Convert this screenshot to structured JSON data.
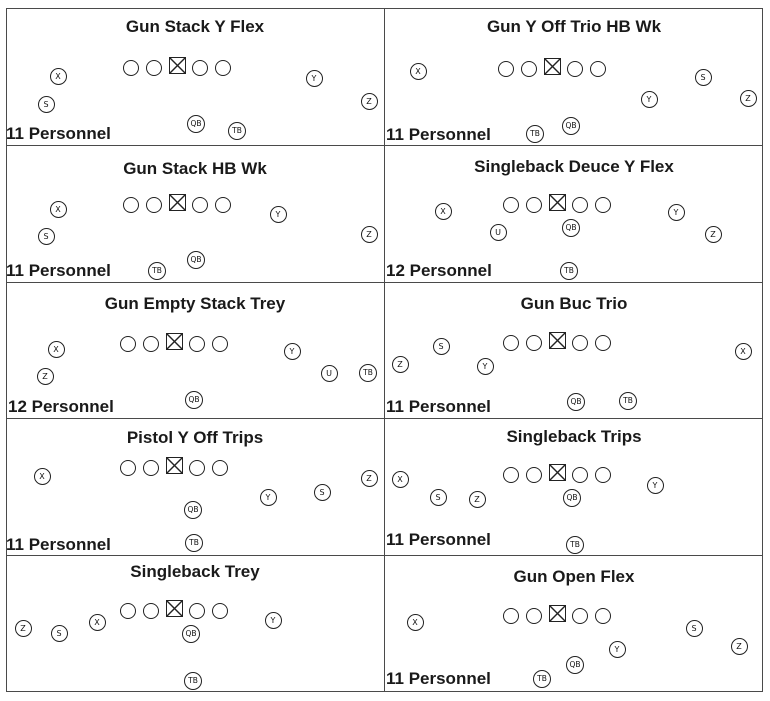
{
  "formations": [
    {
      "title": "Gun Stack Y Flex",
      "personnel": "11 Personnel",
      "players": [
        {
          "label": "X",
          "col": "X"
        },
        {
          "label": "S",
          "col": "S"
        },
        {
          "label": "Y",
          "col": "Y"
        },
        {
          "label": "Z",
          "col": "Z"
        },
        {
          "label": "QB",
          "col": "QB"
        },
        {
          "label": "TB",
          "col": "TB"
        }
      ]
    },
    {
      "title": "Gun Y Off Trio HB Wk",
      "personnel": "11 Personnel",
      "players": [
        {
          "label": "X"
        },
        {
          "label": "S"
        },
        {
          "label": "Y"
        },
        {
          "label": "Z"
        },
        {
          "label": "QB"
        },
        {
          "label": "TB"
        }
      ]
    },
    {
      "title": "Gun Stack HB Wk",
      "personnel": "11 Personnel",
      "players": [
        {
          "label": "X"
        },
        {
          "label": "S"
        },
        {
          "label": "Y"
        },
        {
          "label": "Z"
        },
        {
          "label": "QB"
        },
        {
          "label": "TB"
        }
      ]
    },
    {
      "title": "Singleback Deuce Y Flex",
      "personnel": "12 Personnel",
      "players": [
        {
          "label": "X"
        },
        {
          "label": "U"
        },
        {
          "label": "QB"
        },
        {
          "label": "Y"
        },
        {
          "label": "Z"
        },
        {
          "label": "TB"
        }
      ]
    },
    {
      "title": "Gun Empty Stack Trey",
      "personnel": "12 Personnel",
      "players": [
        {
          "label": "X"
        },
        {
          "label": "Z"
        },
        {
          "label": "Y"
        },
        {
          "label": "U"
        },
        {
          "label": "TB"
        },
        {
          "label": "QB"
        }
      ]
    },
    {
      "title": "Gun Buc Trio",
      "personnel": "11 Personnel",
      "players": [
        {
          "label": "Z"
        },
        {
          "label": "S"
        },
        {
          "label": "Y"
        },
        {
          "label": "X"
        },
        {
          "label": "QB"
        },
        {
          "label": "TB"
        }
      ]
    },
    {
      "title": "Pistol Y Off Trips",
      "personnel": "11 Personnel",
      "players": [
        {
          "label": "X"
        },
        {
          "label": "Y"
        },
        {
          "label": "S"
        },
        {
          "label": "Z"
        },
        {
          "label": "QB"
        },
        {
          "label": "TB"
        }
      ]
    },
    {
      "title": "Singleback Trips",
      "personnel": "11 Personnel",
      "players": [
        {
          "label": "X"
        },
        {
          "label": "S"
        },
        {
          "label": "Z"
        },
        {
          "label": "QB"
        },
        {
          "label": "Y"
        },
        {
          "label": "TB"
        }
      ]
    },
    {
      "title": "Singleback Trey",
      "personnel": "",
      "players": [
        {
          "label": "Z"
        },
        {
          "label": "S"
        },
        {
          "label": "X"
        },
        {
          "label": "QB"
        },
        {
          "label": "Y"
        },
        {
          "label": "TB"
        }
      ]
    },
    {
      "title": "Gun Open Flex",
      "personnel": "11 Personnel",
      "players": [
        {
          "label": "X"
        },
        {
          "label": "Y"
        },
        {
          "label": "S"
        },
        {
          "label": "Z"
        },
        {
          "label": "QB"
        },
        {
          "label": "TB"
        }
      ]
    }
  ]
}
